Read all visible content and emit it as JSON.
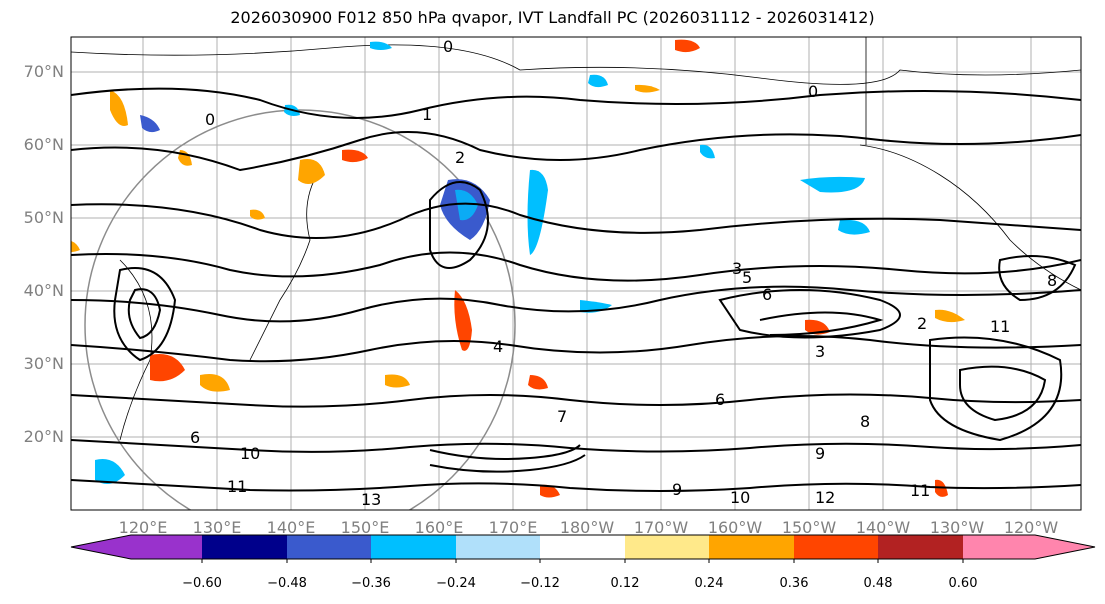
{
  "title": "2026030900 F012 850 hPa qvapor, IVT Landfall PC (2026031112 - 2026031412)",
  "lat_labels": [
    "70°N",
    "60°N",
    "50°N",
    "40°N",
    "30°N",
    "20°N"
  ],
  "lon_labels": [
    "120°E",
    "130°E",
    "140°E",
    "150°E",
    "160°E",
    "170°E",
    "180°W",
    "170°W",
    "160°W",
    "150°W",
    "140°W",
    "130°W",
    "120°W"
  ],
  "colorbar": {
    "colors": [
      "#9932cc",
      "#00008b",
      "#3a5acd",
      "#00bfff",
      "#b0e0fa",
      "#ffffff",
      "#ffe98a",
      "#ffa500",
      "#ff4500",
      "#b22222",
      "#ff85ad"
    ],
    "tick_labels": [
      "−0.60",
      "−0.48",
      "−0.36",
      "−0.24",
      "−0.12",
      "0.12",
      "0.24",
      "0.36",
      "0.48",
      "0.60"
    ]
  },
  "contour_labels": [
    {
      "text": "0"
    },
    {
      "text": "0"
    },
    {
      "text": "0"
    },
    {
      "text": "1"
    },
    {
      "text": "2"
    },
    {
      "text": "3"
    },
    {
      "text": "5"
    },
    {
      "text": "6"
    },
    {
      "text": "2"
    },
    {
      "text": "3"
    },
    {
      "text": "4"
    },
    {
      "text": "6"
    },
    {
      "text": "7"
    },
    {
      "text": "8"
    },
    {
      "text": "9"
    },
    {
      "text": "10"
    },
    {
      "text": "11"
    },
    {
      "text": "12"
    },
    {
      "text": "11"
    },
    {
      "text": "13"
    },
    {
      "text": "10"
    },
    {
      "text": "6"
    },
    {
      "text": "8"
    },
    {
      "text": "11"
    },
    {
      "text": "9"
    }
  ]
}
